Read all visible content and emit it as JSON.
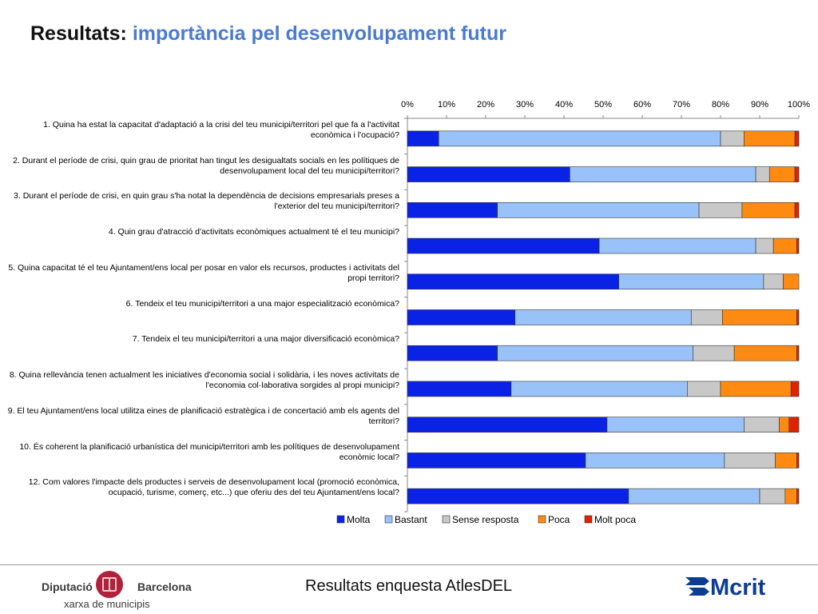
{
  "header": {
    "title_main": "Resultats:",
    "title_sub": "importància pel desenvolupament futur"
  },
  "footer": {
    "center_text": "Resultats enquesta AtlesDEL",
    "logo_left_word1": "Diputació",
    "logo_left_word2": "Barcelona",
    "logo_left_sub": "xarxa de municipis",
    "logo_right_text": "Mcrit"
  },
  "chart_data": {
    "type": "bar",
    "orientation": "horizontal",
    "stacked": "percent",
    "x_ticks": [
      "0%",
      "10%",
      "20%",
      "30%",
      "40%",
      "50%",
      "60%",
      "70%",
      "80%",
      "90%",
      "100%"
    ],
    "xlim": [
      0,
      100
    ],
    "legend_position": "bottom",
    "categories": [
      "1. Quina ha estat la capacitat d'adaptació a la crisi del teu municipi/territori pel que fa a l'activitat econòmica i l'ocupació?",
      "2. Durant el període de crisi, quin grau de prioritat han tingut les desigualtats socials en les polítiques de desenvolupament local del teu municipi/territori?",
      "3. Durant el període de crisi, en quin grau s'ha notat la dependència de decisions empresarials preses a l'exterior del teu municipi/territori?",
      "4. Quin grau d'atracció d'activitats econòmiques actualment té el teu municipi?",
      "5. Quina capacitat té el teu Ajuntament/ens local per posar en valor els recursos, productes i activitats del propi territori?",
      "6. Tendeix el teu municipi/territori a una major especialització econòmica?",
      "7. Tendeix el teu municipi/territori a una major diversificació econòmica?",
      "8. Quina rellevància tenen actualment les iniciatives d'economia social i solidària, i les noves activitats de l'economia col·laborativa sorgides al propi municipi?",
      "9. El teu Ajuntament/ens local utilitza eines de planificació estratègica i de concertació amb els agents del territori?",
      "10. És coherent la planificació urbanística del municipi/territori amb les polítiques de desenvolupament econòmic local?",
      "12. Com valores l'impacte dels productes i serveis de desenvolupament local (promoció econòmica, ocupació, turisme, comerç, etc...) que oferiu des del teu Ajuntament/ens local?"
    ],
    "series": [
      {
        "name": "Molta",
        "color": "#0a22e6",
        "values": [
          8,
          41.5,
          23,
          49,
          54,
          27.5,
          23,
          26.5,
          51,
          45.5,
          56.5
        ]
      },
      {
        "name": "Bastant",
        "color": "#99c2f8",
        "values": [
          72,
          47.5,
          51.5,
          40,
          37,
          45,
          50,
          45,
          35,
          35.5,
          33.5
        ]
      },
      {
        "name": "Sense resposta",
        "color": "#c8c8c8",
        "values": [
          6,
          3.5,
          11,
          4.5,
          5,
          8,
          10.5,
          8.5,
          9,
          13,
          6.5
        ]
      },
      {
        "name": "Poca",
        "color": "#ff8a12",
        "values": [
          13,
          6.5,
          13.5,
          6,
          4,
          19,
          16,
          18,
          2.5,
          5.5,
          3
        ]
      },
      {
        "name": "Molt poca",
        "color": "#e02200",
        "values": [
          1,
          1,
          1,
          0.5,
          0,
          0.5,
          0.5,
          2,
          2.5,
          0.5,
          0.5
        ]
      }
    ]
  }
}
